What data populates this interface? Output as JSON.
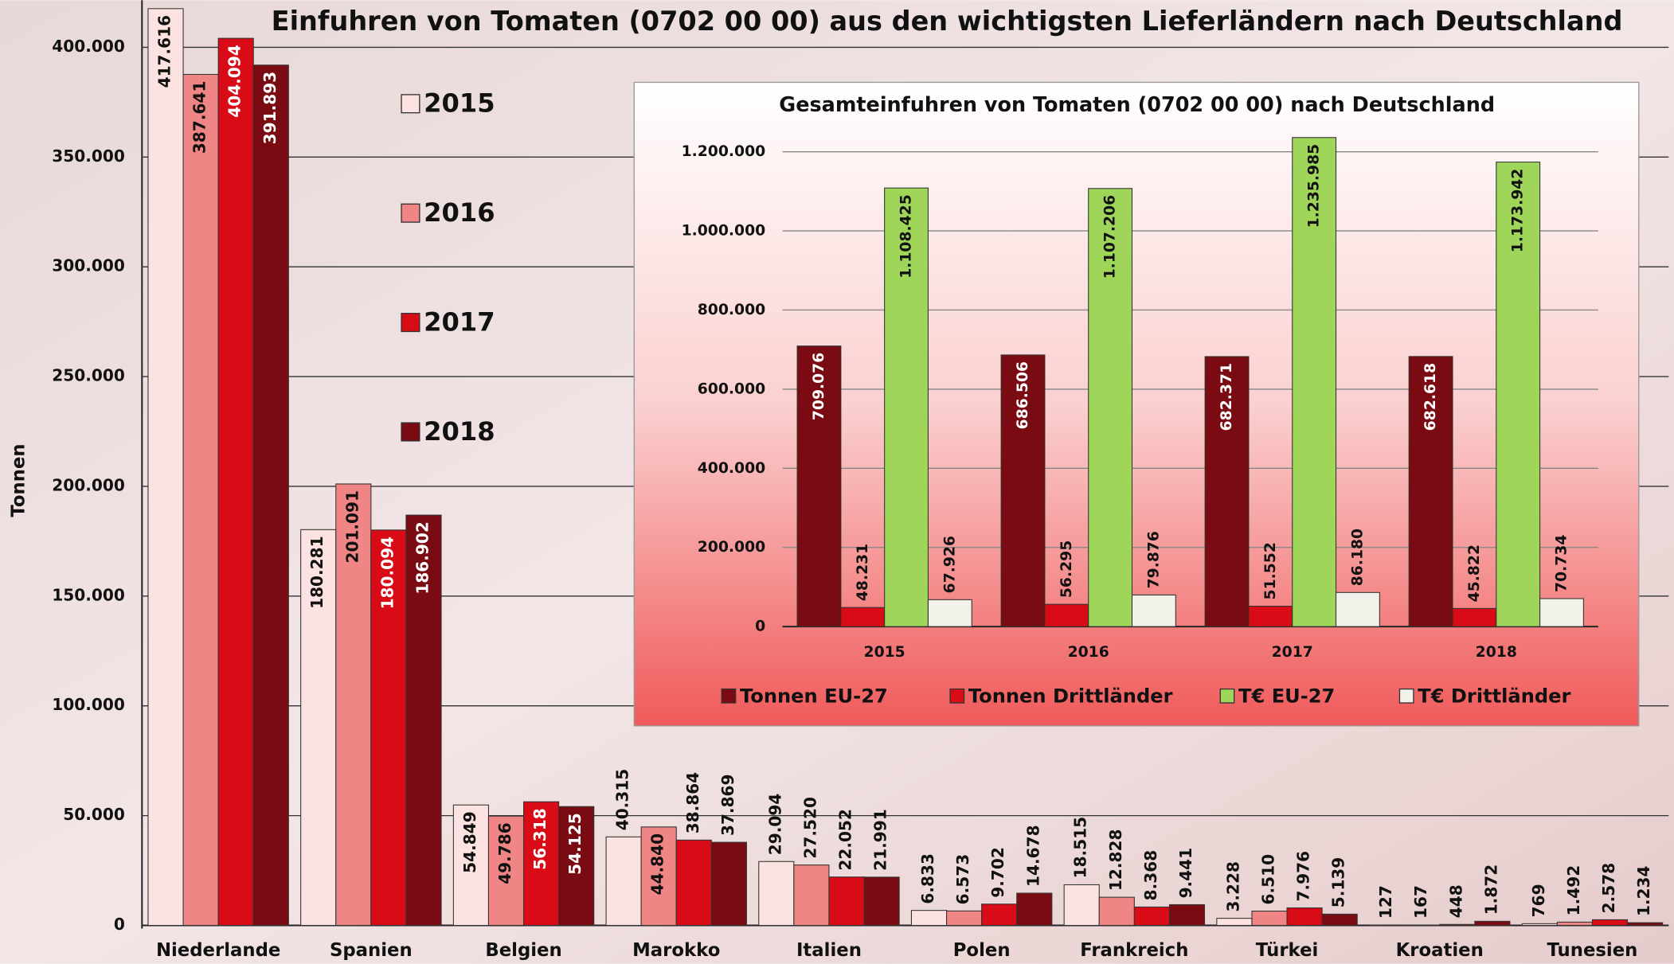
{
  "chart_data": [
    {
      "type": "bar",
      "title": "Einfuhren von Tomaten (0702 00 00) aus den wichtigsten Lieferländern nach Deutschland",
      "y_label": "Tonnen",
      "categories": [
        "Niederlande",
        "Spanien",
        "Belgien",
        "Marokko",
        "Italien",
        "Polen",
        "Frankreich",
        "Türkei",
        "Kroatien",
        "Tunesien"
      ],
      "series": [
        {
          "name": "2015",
          "color": "#fde2e2",
          "values": [
            417616,
            180281,
            54849,
            40315,
            29094,
            6833,
            18515,
            3228,
            127,
            769
          ],
          "value_labels": [
            "417.616",
            "180.281",
            "54.849",
            "40.315",
            "29.094",
            "6.833",
            "18.515",
            "3.228",
            "127",
            "769"
          ]
        },
        {
          "name": "2016",
          "color": "#f08585",
          "values": [
            387641,
            201091,
            49786,
            44840,
            27520,
            6573,
            12828,
            6510,
            167,
            1492
          ],
          "value_labels": [
            "387.641",
            "201.091",
            "49.786",
            "44.840",
            "27.520",
            "6.573",
            "12.828",
            "6.510",
            "167",
            "1.492"
          ]
        },
        {
          "name": "2017",
          "color": "#d90b16",
          "values": [
            404094,
            180094,
            56318,
            38864,
            22052,
            9702,
            8368,
            7976,
            448,
            2578
          ],
          "value_labels": [
            "404.094",
            "180.094",
            "56.318",
            "38.864",
            "22.052",
            "9.702",
            "8.368",
            "7.976",
            "448",
            "2.578"
          ]
        },
        {
          "name": "2018",
          "color": "#7a0b12",
          "values": [
            391893,
            186902,
            54125,
            37869,
            21991,
            14678,
            9441,
            5139,
            1872,
            1234
          ],
          "value_labels": [
            "391.893",
            "186.902",
            "54.125",
            "37.869",
            "21.991",
            "14.678",
            "9.441",
            "5.139",
            "1.872",
            "1.234"
          ]
        }
      ],
      "ylim": [
        0,
        420000
      ],
      "yticks": [
        0,
        {
          "value": 50000,
          "label": "50.000"
        },
        {
          "value": 100000,
          "label": "100.000"
        },
        {
          "value": 150000,
          "label": "150.000"
        },
        {
          "value": 200000,
          "label": "200.000"
        },
        {
          "value": 250000,
          "label": "250.000"
        },
        {
          "value": 300000,
          "label": "300.000"
        },
        {
          "value": 350000,
          "label": "350.000"
        },
        {
          "value": 400000,
          "label": "400.000"
        }
      ],
      "grid": true
    },
    {
      "type": "bar",
      "title": "Gesamteinfuhren von Tomaten (0702 00 00) nach Deutschland",
      "categories": [
        "2015",
        "2016",
        "2017",
        "2018"
      ],
      "series": [
        {
          "name": "Tonnen EU-27",
          "color": "#7a0b12",
          "values": [
            709076,
            686506,
            682371,
            682618
          ],
          "value_labels": [
            "709.076",
            "686.506",
            "682.371",
            "682.618"
          ]
        },
        {
          "name": "Tonnen Drittländer",
          "color": "#d90b16",
          "values": [
            48231,
            56295,
            51552,
            45822
          ],
          "value_labels": [
            "48.231",
            "56.295",
            "51.552",
            "45.822"
          ]
        },
        {
          "name": "T€ EU-27",
          "color": "#9fd65a",
          "values": [
            1108425,
            1107206,
            1235985,
            1173942
          ],
          "value_labels": [
            "1.108.425",
            "1.107.206",
            "1.235.985",
            "1.173.942"
          ]
        },
        {
          "name": "T€ Drittländer",
          "color": "#f2f2ea",
          "values": [
            67926,
            79876,
            86180,
            70734
          ],
          "value_labels": [
            "67.926",
            "79.876",
            "86.180",
            "70.734"
          ]
        }
      ],
      "ylim": [
        0,
        1250000
      ],
      "yticks": [
        0,
        {
          "value": 200000,
          "label": "200.000"
        },
        {
          "value": 400000,
          "label": "400.000"
        },
        {
          "value": 600000,
          "label": "600.000"
        },
        {
          "value": 800000,
          "label": "800.000"
        },
        {
          "value": 1000000,
          "label": "1.000.000"
        },
        {
          "value": 1200000,
          "label": "1.200.000"
        }
      ],
      "grid": true
    }
  ]
}
